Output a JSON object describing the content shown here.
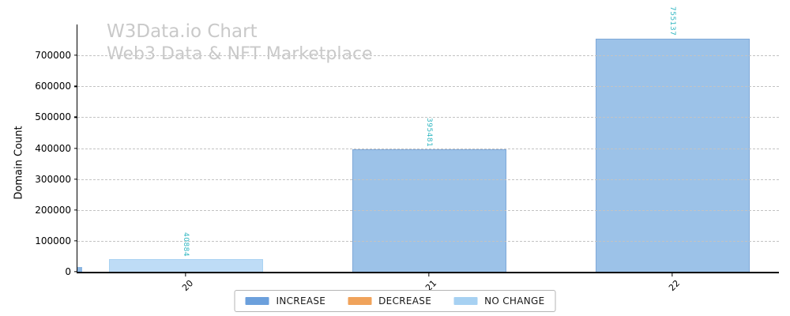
{
  "chart_data": {
    "type": "bar",
    "watermark": {
      "line1": "W3Data.io Chart",
      "line2": "Web3 Data & NFT Marketplace"
    },
    "ylabel": "Domain Count",
    "xlabel": "",
    "categories": [
      "20",
      "21",
      "22"
    ],
    "values": [
      40884,
      395481,
      755137
    ],
    "value_labels": [
      "40884",
      "395481",
      "755137"
    ],
    "bar_statuses": [
      "NO CHANGE",
      "INCREASE",
      "INCREASE"
    ],
    "ylim": [
      0,
      800000
    ],
    "yticks": [
      0,
      100000,
      200000,
      300000,
      400000,
      500000,
      600000,
      700000
    ],
    "ytick_labels": [
      "0",
      "100000",
      "200000",
      "300000",
      "400000",
      "500000",
      "600000",
      "700000"
    ],
    "grid": {
      "axis": "y",
      "style": "dashed",
      "color": "#c3c3c3",
      "over_bars": true
    },
    "legend": {
      "position": "bottom-center",
      "items": [
        {
          "label": "INCREASE",
          "color": "#6ca0dc"
        },
        {
          "label": "DECREASE",
          "color": "#f0a35b"
        },
        {
          "label": "NO CHANGE",
          "color": "#a7d1f2"
        }
      ]
    },
    "colors": {
      "bar_fill_increase": "#9cc2e8",
      "bar_edge_increase": "#7fa8d8",
      "bar_fill_nochange": "#bedcf6",
      "bar_edge_nochange": "#a9d2f2",
      "bar_fill_decrease": "#f5c79a",
      "bar_edge_decrease": "#eda45e",
      "value_label": "#2fb6c1",
      "watermark": "#c9c9c9",
      "axis": "#000000",
      "clipped_fragment": "#8cb6e2"
    }
  }
}
